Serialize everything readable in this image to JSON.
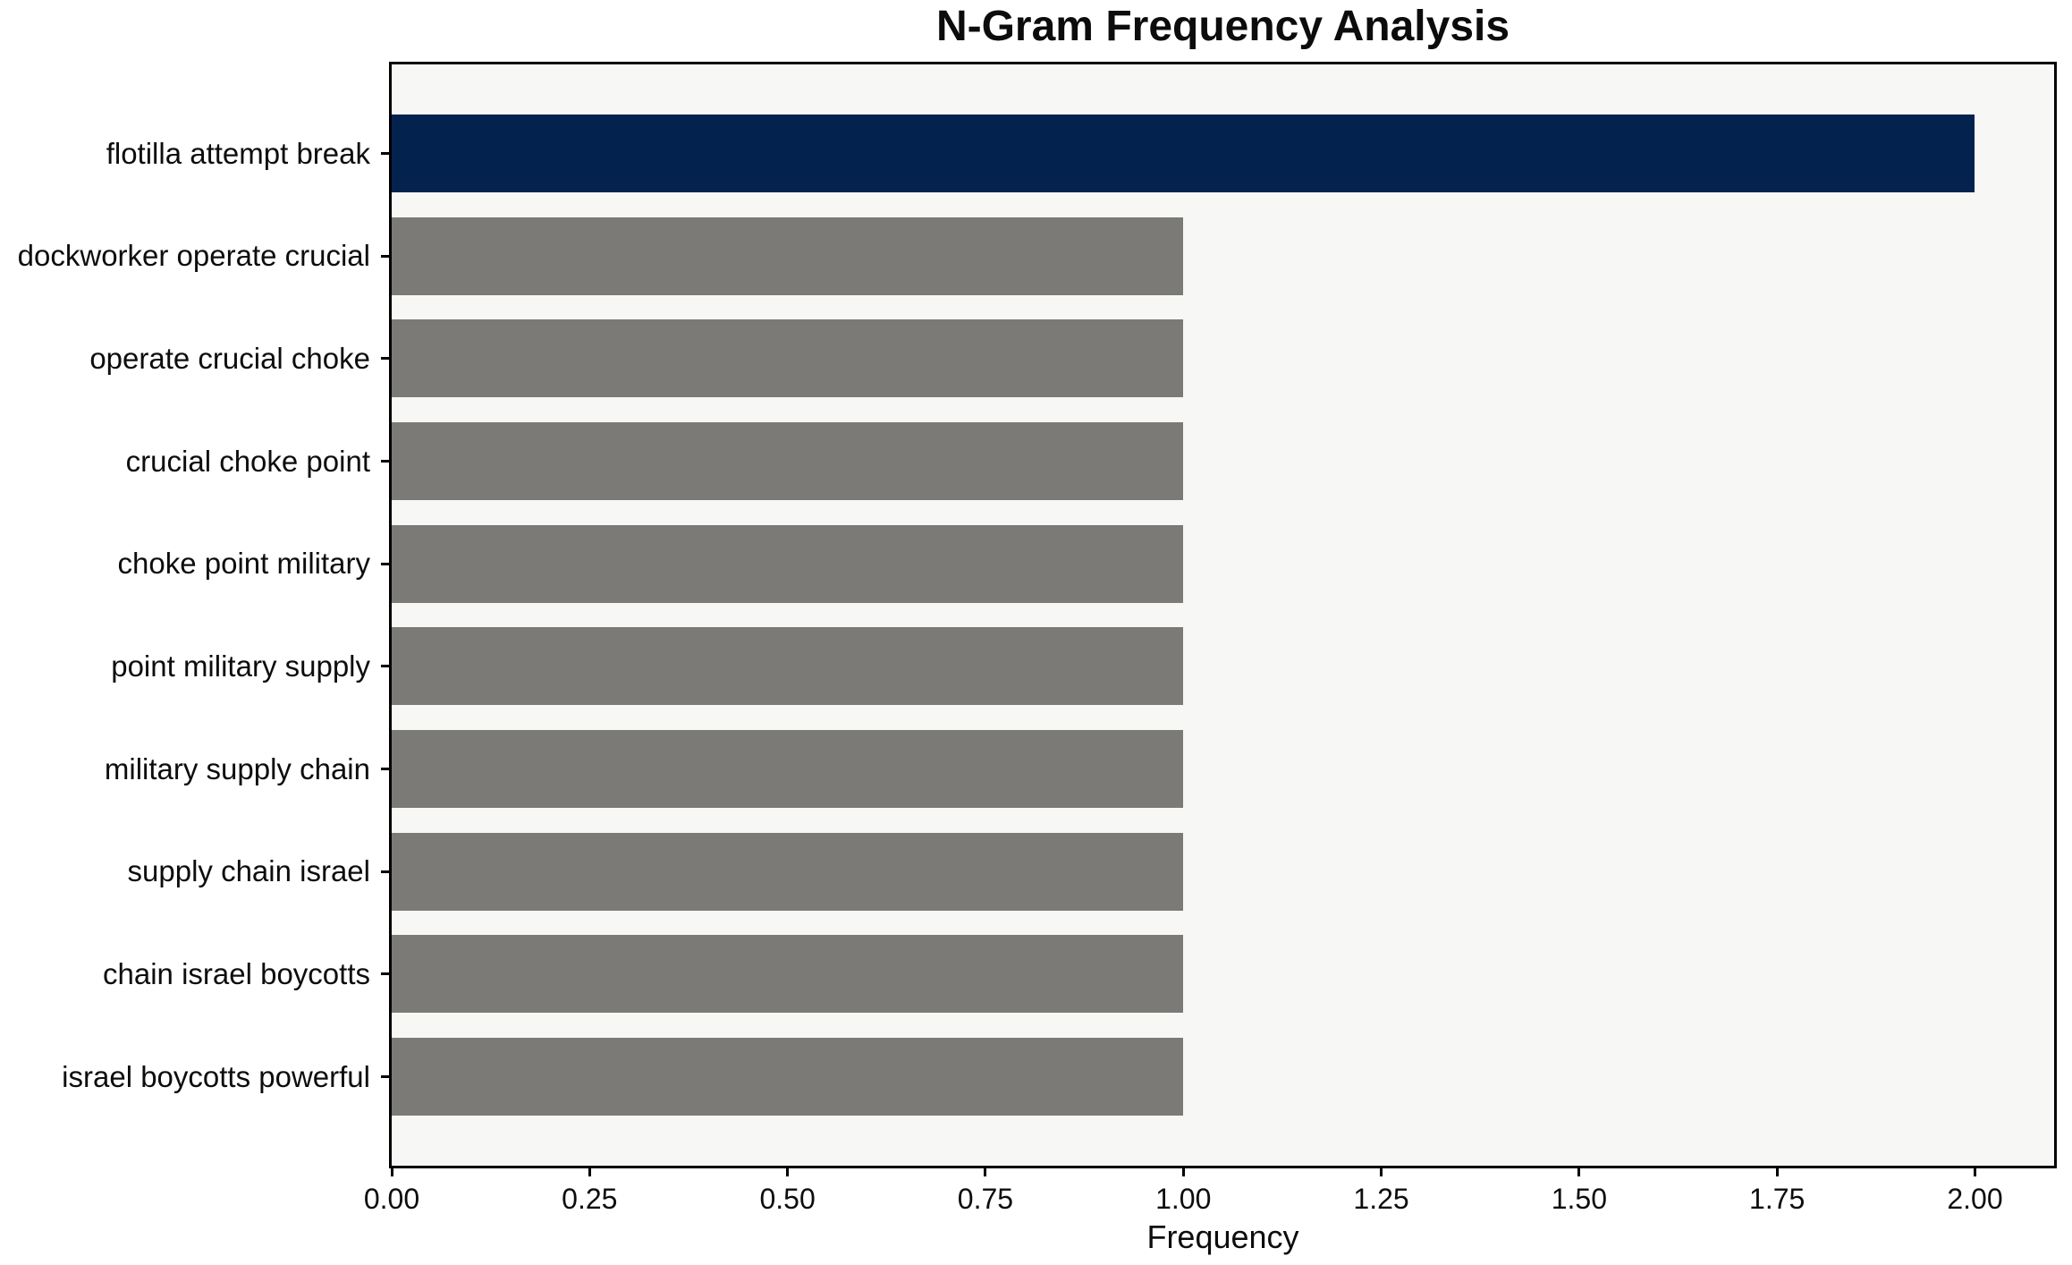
{
  "chart_data": {
    "type": "bar",
    "orientation": "horizontal",
    "title": "N-Gram Frequency Analysis",
    "xlabel": "Frequency",
    "ylabel": "",
    "categories": [
      "flotilla attempt break",
      "dockworker operate crucial",
      "operate crucial choke",
      "crucial choke point",
      "choke point military",
      "point military supply",
      "military supply chain",
      "supply chain israel",
      "chain israel boycotts",
      "israel boycotts powerful"
    ],
    "values": [
      2,
      1,
      1,
      1,
      1,
      1,
      1,
      1,
      1,
      1
    ],
    "bar_colors": [
      "#03234e",
      "#7b7a76",
      "#7b7a76",
      "#7b7a76",
      "#7b7a76",
      "#7b7a76",
      "#7b7a76",
      "#7b7a76",
      "#7b7a76",
      "#7b7a76"
    ],
    "highlight_color": "#03234e",
    "default_bar_color": "#7b7a76",
    "x_ticks": [
      "0.00",
      "0.25",
      "0.50",
      "0.75",
      "1.00",
      "1.25",
      "1.50",
      "1.75",
      "2.00"
    ],
    "x_tick_values": [
      0,
      0.25,
      0.5,
      0.75,
      1.0,
      1.25,
      1.5,
      1.75,
      2.0
    ],
    "xlim": [
      0,
      2.1
    ],
    "grid": false,
    "legend": null,
    "plot_background": "#f7f7f6",
    "spine_color": "#000000"
  }
}
